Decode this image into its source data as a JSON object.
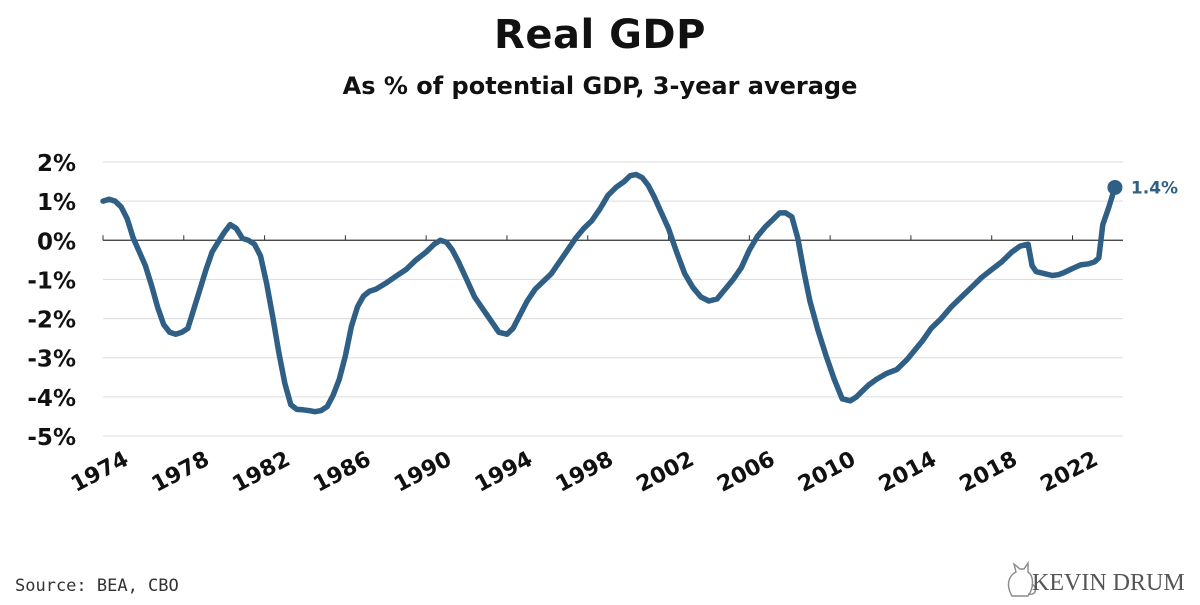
{
  "title": "Real GDP",
  "subtitle": "As % of potential GDP, 3-year average",
  "source": "Source: BEA, CBO",
  "brand": {
    "name": "KEVIN DRUM",
    "icon": "cat-icon"
  },
  "colors": {
    "line": "#2f5f84",
    "grid": "#dcdcdc",
    "zero": "#333333",
    "text": "#111111"
  },
  "chart_data": {
    "type": "line",
    "title": "Real GDP",
    "subtitle": "As % of potential GDP, 3-year average",
    "xlabel": "",
    "ylabel": "",
    "xlim": [
      1974,
      2024.5
    ],
    "ylim": [
      -5,
      2
    ],
    "grid": true,
    "y_ticks": [
      2,
      1,
      0,
      -1,
      -2,
      -3,
      -4,
      -5
    ],
    "y_tick_labels": [
      "2%",
      "1%",
      "0%",
      "-1%",
      "-2%",
      "-3%",
      "-4%",
      "-5%"
    ],
    "x_ticks": [
      1974,
      1978,
      1982,
      1986,
      1990,
      1994,
      1998,
      2002,
      2006,
      2010,
      2014,
      2018,
      2022
    ],
    "x_tick_labels": [
      "1974",
      "1978",
      "1982",
      "1986",
      "1990",
      "1994",
      "1998",
      "2002",
      "2006",
      "2010",
      "2014",
      "2018",
      "2022"
    ],
    "series": [
      {
        "x": [
          1974.0,
          1974.3,
          1974.6,
          1974.9,
          1975.2,
          1975.5,
          1975.8,
          1976.1,
          1976.4,
          1976.7,
          1977.0,
          1977.3,
          1977.6,
          1977.9,
          1978.2,
          1978.5,
          1978.8,
          1979.1,
          1979.4,
          1979.7,
          1980.0,
          1980.3,
          1980.6,
          1980.9,
          1981.2,
          1981.5,
          1981.8,
          1982.1,
          1982.4,
          1982.7,
          1983.0,
          1983.3,
          1983.6,
          1983.9,
          1984.2,
          1984.5,
          1984.8,
          1985.1,
          1985.4,
          1985.7,
          1986.0,
          1986.3,
          1986.6,
          1986.9,
          1987.2,
          1987.5,
          1988.0,
          1988.5,
          1989.0,
          1989.5,
          1990.0,
          1990.4,
          1990.7,
          1991.0,
          1991.3,
          1991.6,
          1992.0,
          1992.4,
          1992.8,
          1993.2,
          1993.6,
          1994.0,
          1994.3,
          1994.6,
          1995.0,
          1995.4,
          1995.8,
          1996.2,
          1996.6,
          1997.0,
          1997.4,
          1997.8,
          1998.2,
          1998.6,
          1999.0,
          1999.4,
          1999.8,
          2000.1,
          2000.4,
          2000.7,
          2001.0,
          2001.3,
          2001.6,
          2002.0,
          2002.4,
          2002.8,
          2003.2,
          2003.6,
          2004.0,
          2004.4,
          2004.8,
          2005.2,
          2005.6,
          2006.0,
          2006.4,
          2006.8,
          2007.2,
          2007.5,
          2007.8,
          2008.1,
          2008.4,
          2008.7,
          2009.0,
          2009.4,
          2009.8,
          2010.2,
          2010.6,
          2011.0,
          2011.3,
          2011.6,
          2011.9,
          2012.3,
          2012.8,
          2013.3,
          2013.8,
          2014.2,
          2014.6,
          2015.0,
          2015.5,
          2016.0,
          2016.5,
          2017.0,
          2017.5,
          2018.0,
          2018.5,
          2019.0,
          2019.4,
          2019.8,
          2020.0,
          2020.2,
          2020.6,
          2021.0,
          2021.3,
          2021.6,
          2022.0,
          2022.4,
          2022.8,
          2023.1,
          2023.3,
          2023.5,
          2023.8,
          2024.1
        ],
        "values": [
          1.0,
          1.05,
          1.0,
          0.85,
          0.55,
          0.05,
          -0.3,
          -0.65,
          -1.15,
          -1.7,
          -2.15,
          -2.35,
          -2.4,
          -2.35,
          -2.25,
          -1.75,
          -1.25,
          -0.75,
          -0.3,
          -0.05,
          0.2,
          0.4,
          0.3,
          0.05,
          0.0,
          -0.1,
          -0.4,
          -1.1,
          -1.95,
          -2.85,
          -3.65,
          -4.2,
          -4.32,
          -4.33,
          -4.35,
          -4.38,
          -4.35,
          -4.25,
          -3.95,
          -3.55,
          -2.95,
          -2.2,
          -1.7,
          -1.42,
          -1.3,
          -1.25,
          -1.1,
          -0.92,
          -0.75,
          -0.5,
          -0.3,
          -0.1,
          0.0,
          -0.05,
          -0.25,
          -0.55,
          -1.0,
          -1.45,
          -1.75,
          -2.05,
          -2.35,
          -2.4,
          -2.25,
          -1.95,
          -1.55,
          -1.25,
          -1.05,
          -0.85,
          -0.55,
          -0.25,
          0.05,
          0.3,
          0.5,
          0.8,
          1.15,
          1.35,
          1.5,
          1.65,
          1.68,
          1.6,
          1.4,
          1.1,
          0.75,
          0.3,
          -0.3,
          -0.85,
          -1.2,
          -1.45,
          -1.55,
          -1.5,
          -1.25,
          -1.0,
          -0.7,
          -0.25,
          0.1,
          0.35,
          0.55,
          0.7,
          0.7,
          0.6,
          0.05,
          -0.8,
          -1.55,
          -2.3,
          -2.95,
          -3.55,
          -4.05,
          -4.1,
          -4.0,
          -3.85,
          -3.7,
          -3.55,
          -3.4,
          -3.3,
          -3.05,
          -2.8,
          -2.55,
          -2.25,
          -2.0,
          -1.7,
          -1.45,
          -1.2,
          -0.95,
          -0.75,
          -0.55,
          -0.3,
          -0.15,
          -0.1,
          -0.65,
          -0.8,
          -0.85,
          -0.9,
          -0.88,
          -0.82,
          -0.72,
          -0.63,
          -0.6,
          -0.55,
          -0.45,
          0.4,
          0.85,
          1.35
        ]
      }
    ],
    "annotations": [
      {
        "x": 2024.1,
        "y": 1.35,
        "text": "1.4%"
      }
    ]
  }
}
